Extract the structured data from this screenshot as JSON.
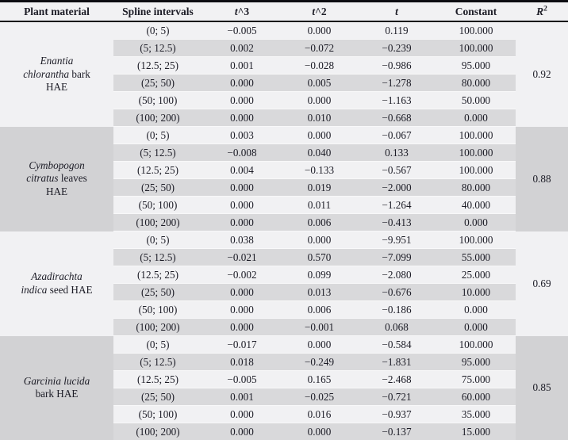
{
  "colors": {
    "border_dark": "#0d0d12",
    "text": "#1c1c26",
    "row_light": "#f1f1f3",
    "row_shaded": "#d9d9db",
    "group_shaded": "#d2d2d4"
  },
  "table": {
    "headers": [
      {
        "name": "plant-material",
        "parts": [
          {
            "t": "Plant material"
          }
        ]
      },
      {
        "name": "spline-intervals",
        "parts": [
          {
            "t": "Spline intervals"
          }
        ]
      },
      {
        "name": "t-cubed",
        "parts": [
          {
            "t": "t",
            "i": true
          },
          {
            "t": "^3"
          }
        ]
      },
      {
        "name": "t-squared",
        "parts": [
          {
            "t": "t",
            "i": true
          },
          {
            "t": "^2"
          }
        ]
      },
      {
        "name": "t",
        "parts": [
          {
            "t": "t",
            "i": true
          }
        ]
      },
      {
        "name": "constant",
        "parts": [
          {
            "t": "Constant"
          }
        ]
      },
      {
        "name": "r-squared",
        "parts": [
          {
            "t": "R",
            "i": true
          },
          {
            "t": "2",
            "sup": true
          }
        ]
      }
    ],
    "groups": [
      {
        "plant_lines": [
          [
            {
              "t": "Enantia",
              "i": true
            }
          ],
          [
            {
              "t": "chlorantha",
              "i": true
            },
            {
              "t": " bark"
            }
          ],
          [
            {
              "t": "HAE"
            }
          ]
        ],
        "r2": "0.92",
        "shaded": false,
        "rows": [
          {
            "interval": "(0; 5)",
            "t3": "−0.005",
            "t2": "0.000",
            "t": "0.119",
            "constant": "100.000"
          },
          {
            "interval": "(5; 12.5)",
            "t3": "0.002",
            "t2": "−0.072",
            "t": "−0.239",
            "constant": "100.000"
          },
          {
            "interval": "(12.5; 25)",
            "t3": "0.001",
            "t2": "−0.028",
            "t": "−0.986",
            "constant": "95.000"
          },
          {
            "interval": "(25; 50)",
            "t3": "0.000",
            "t2": "0.005",
            "t": "−1.278",
            "constant": "80.000"
          },
          {
            "interval": "(50; 100)",
            "t3": "0.000",
            "t2": "0.000",
            "t": "−1.163",
            "constant": "50.000"
          },
          {
            "interval": "(100; 200)",
            "t3": "0.000",
            "t2": "0.010",
            "t": "−0.668",
            "constant": "0.000"
          }
        ]
      },
      {
        "plant_lines": [
          [
            {
              "t": "Cymbopogon",
              "i": true
            }
          ],
          [
            {
              "t": "citratus",
              "i": true
            },
            {
              "t": " leaves"
            }
          ],
          [
            {
              "t": "HAE"
            }
          ]
        ],
        "r2": "0.88",
        "shaded": true,
        "rows": [
          {
            "interval": "(0; 5)",
            "t3": "0.003",
            "t2": "0.000",
            "t": "−0.067",
            "constant": "100.000"
          },
          {
            "interval": "(5; 12.5)",
            "t3": "−0.008",
            "t2": "0.040",
            "t": "0.133",
            "constant": "100.000"
          },
          {
            "interval": "(12.5; 25)",
            "t3": "0.004",
            "t2": "−0.133",
            "t": "−0.567",
            "constant": "100.000"
          },
          {
            "interval": "(25; 50)",
            "t3": "0.000",
            "t2": "0.019",
            "t": "−2.000",
            "constant": "80.000"
          },
          {
            "interval": "(50; 100)",
            "t3": "0.000",
            "t2": "0.011",
            "t": "−1.264",
            "constant": "40.000"
          },
          {
            "interval": "(100; 200)",
            "t3": "0.000",
            "t2": "0.006",
            "t": "−0.413",
            "constant": "0.000"
          }
        ]
      },
      {
        "plant_lines": [
          [
            {
              "t": "Azadirachta",
              "i": true
            }
          ],
          [
            {
              "t": "indica",
              "i": true
            },
            {
              "t": " seed HAE"
            }
          ]
        ],
        "r2": "0.69",
        "shaded": false,
        "rows": [
          {
            "interval": "(0; 5)",
            "t3": "0.038",
            "t2": "0.000",
            "t": "−9.951",
            "constant": "100.000"
          },
          {
            "interval": "(5; 12.5)",
            "t3": "−0.021",
            "t2": "0.570",
            "t": "−7.099",
            "constant": "55.000"
          },
          {
            "interval": "(12.5; 25)",
            "t3": "−0.002",
            "t2": "0.099",
            "t": "−2.080",
            "constant": "25.000"
          },
          {
            "interval": "(25; 50)",
            "t3": "0.000",
            "t2": "0.013",
            "t": "−0.676",
            "constant": "10.000"
          },
          {
            "interval": "(50; 100)",
            "t3": "0.000",
            "t2": "0.006",
            "t": "−0.186",
            "constant": "0.000"
          },
          {
            "interval": "(100; 200)",
            "t3": "0.000",
            "t2": "−0.001",
            "t": "0.068",
            "constant": "0.000"
          }
        ]
      },
      {
        "plant_lines": [
          [
            {
              "t": "Garcinia lucida",
              "i": true
            }
          ],
          [
            {
              "t": "bark HAE"
            }
          ]
        ],
        "r2": "0.85",
        "shaded": true,
        "rows": [
          {
            "interval": "(0; 5)",
            "t3": "−0.017",
            "t2": "0.000",
            "t": "−0.584",
            "constant": "100.000"
          },
          {
            "interval": "(5; 12.5)",
            "t3": "0.018",
            "t2": "−0.249",
            "t": "−1.831",
            "constant": "95.000"
          },
          {
            "interval": "(12.5; 25)",
            "t3": "−0.005",
            "t2": "0.165",
            "t": "−2.468",
            "constant": "75.000"
          },
          {
            "interval": "(25; 50)",
            "t3": "0.001",
            "t2": "−0.025",
            "t": "−0.721",
            "constant": "60.000"
          },
          {
            "interval": "(50; 100)",
            "t3": "0.000",
            "t2": "0.016",
            "t": "−0.937",
            "constant": "35.000"
          },
          {
            "interval": "(100; 200)",
            "t3": "0.000",
            "t2": "0.000",
            "t": "−0.137",
            "constant": "15.000"
          }
        ]
      }
    ]
  }
}
